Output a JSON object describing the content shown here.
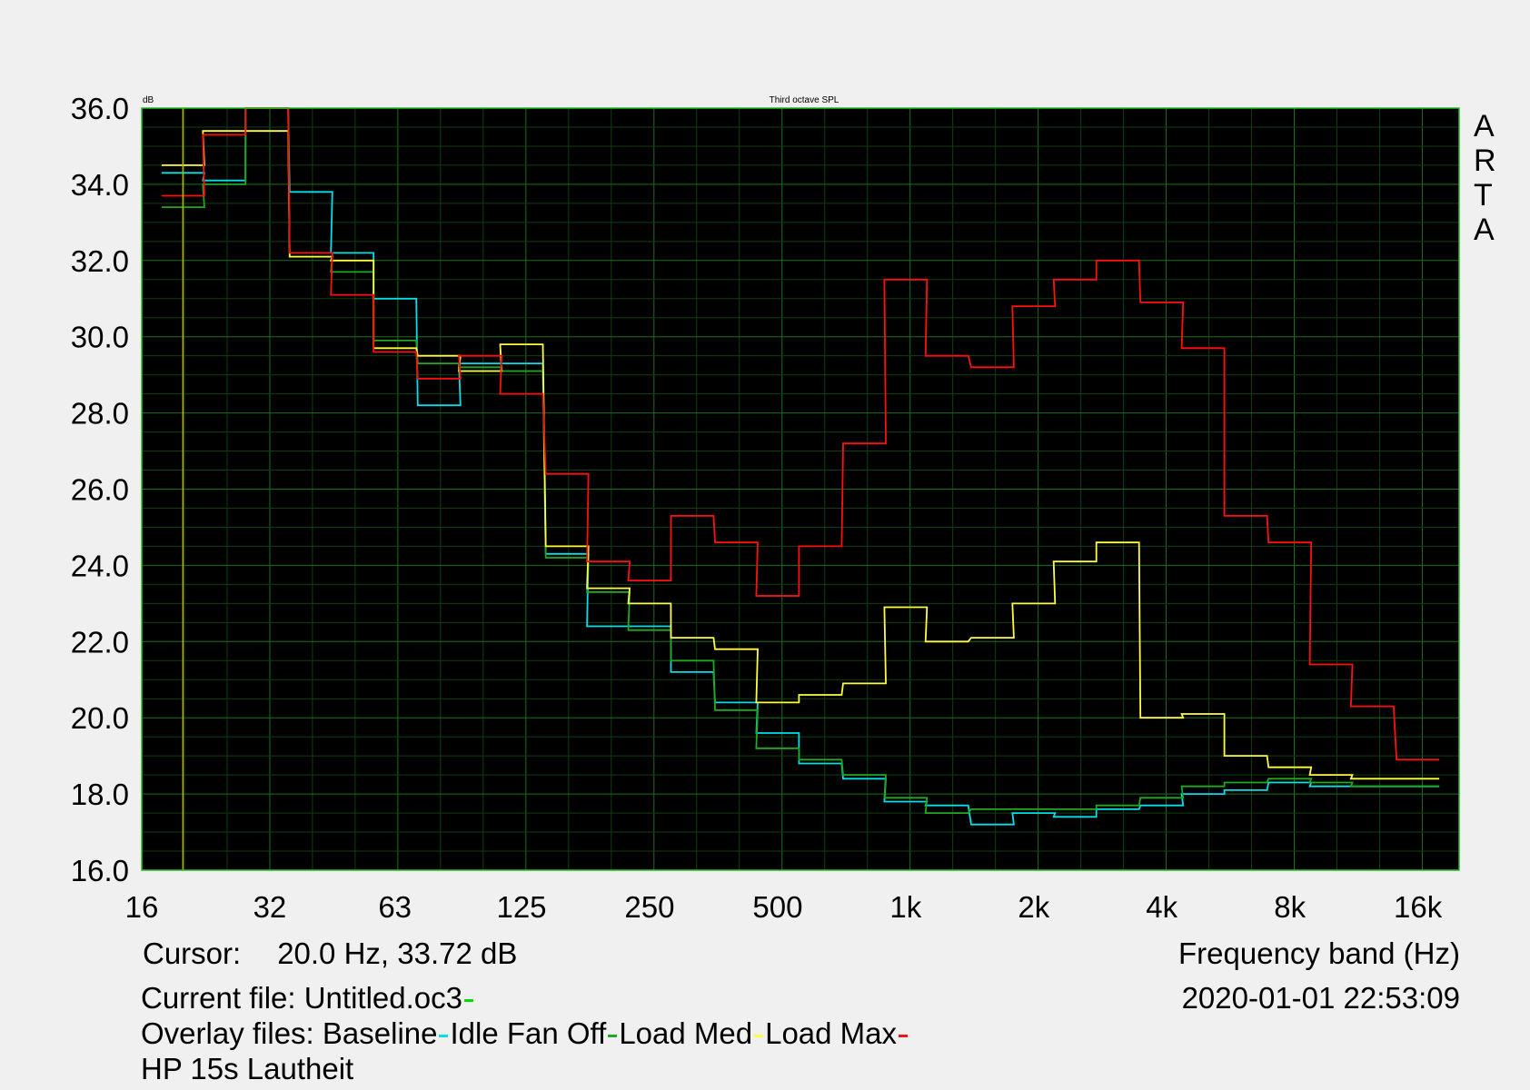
{
  "chart_data": {
    "type": "line",
    "title": "Third octave SPL",
    "ylabel": "dB",
    "xlabel": "Frequency band (Hz)",
    "ylim": [
      16,
      36
    ],
    "xlim": [
      16,
      20000
    ],
    "x_scale": "log",
    "grid": true,
    "y_ticks": [
      "36.0",
      "34.0",
      "32.0",
      "30.0",
      "28.0",
      "26.0",
      "24.0",
      "22.0",
      "20.0",
      "18.0",
      "16.0"
    ],
    "x_ticks": [
      {
        "label": "16",
        "hz": 16
      },
      {
        "label": "32",
        "hz": 32
      },
      {
        "label": "63",
        "hz": 63
      },
      {
        "label": "125",
        "hz": 125
      },
      {
        "label": "250",
        "hz": 250
      },
      {
        "label": "500",
        "hz": 500
      },
      {
        "label": "1k",
        "hz": 1000
      },
      {
        "label": "2k",
        "hz": 2000
      },
      {
        "label": "4k",
        "hz": 4000
      },
      {
        "label": "8k",
        "hz": 8000
      },
      {
        "label": "16k",
        "hz": 16000
      }
    ],
    "bands": [
      20,
      25,
      31.5,
      40,
      50,
      63,
      80,
      100,
      125,
      160,
      200,
      250,
      315,
      400,
      500,
      630,
      800,
      1000,
      1250,
      1600,
      2000,
      2500,
      3150,
      4000,
      5000,
      6300,
      8000,
      10000,
      12500,
      16000
    ],
    "cursor_hz": 20,
    "series": [
      {
        "name": "Baseline",
        "color": "#00e0e8",
        "values": [
          34.3,
          34.1,
          36.5,
          33.8,
          32.2,
          31.0,
          28.2,
          29.3,
          29.3,
          24.3,
          22.4,
          22.4,
          21.2,
          20.4,
          19.6,
          18.8,
          18.4,
          17.8,
          17.7,
          17.2,
          17.5,
          17.4,
          17.6,
          17.7,
          18.0,
          18.1,
          18.3,
          18.2,
          18.2,
          18.2
        ]
      },
      {
        "name": "Idle Fan Off",
        "color": "#1faa1f",
        "values": [
          33.4,
          34.0,
          36.8,
          32.1,
          31.7,
          29.9,
          29.3,
          29.2,
          29.1,
          24.2,
          23.3,
          22.3,
          21.5,
          20.2,
          19.2,
          18.9,
          18.5,
          17.9,
          17.5,
          17.6,
          17.6,
          17.6,
          17.7,
          17.9,
          18.2,
          18.3,
          18.4,
          18.3,
          18.2,
          18.2
        ]
      },
      {
        "name": "Load Med",
        "color": "#ffff40",
        "values": [
          34.5,
          35.4,
          35.4,
          32.1,
          32.0,
          29.7,
          29.5,
          29.1,
          29.8,
          24.5,
          23.4,
          23.0,
          22.1,
          21.8,
          20.4,
          20.6,
          20.9,
          22.9,
          22.0,
          22.1,
          23.0,
          24.1,
          24.6,
          20.0,
          20.1,
          19.0,
          18.7,
          18.5,
          18.4,
          18.4
        ]
      },
      {
        "name": "Load Max",
        "color": "#ff1010",
        "values": [
          33.7,
          35.3,
          36.5,
          32.2,
          31.1,
          29.6,
          28.9,
          29.5,
          28.5,
          26.4,
          24.1,
          23.6,
          25.3,
          24.6,
          23.2,
          24.5,
          27.2,
          31.5,
          29.5,
          29.2,
          30.8,
          31.5,
          32.0,
          30.9,
          29.7,
          25.3,
          24.6,
          21.4,
          20.3,
          18.9
        ]
      }
    ],
    "cursor_label": "Cursor:",
    "cursor_value": "20.0 Hz, 33.72 dB",
    "current_file_label": "Current file: Untitled.oc3",
    "current_file_color": "#00e000",
    "overlay_label": "Overlay files:",
    "overlay_names": [
      "Baseline",
      "Idle Fan Off",
      "Load Med",
      "Load Max"
    ],
    "caption": "HP 15s Lautheit",
    "timestamp": "2020-01-01  22:53:09",
    "logo_letters": [
      "A",
      "R",
      "T",
      "A"
    ]
  }
}
